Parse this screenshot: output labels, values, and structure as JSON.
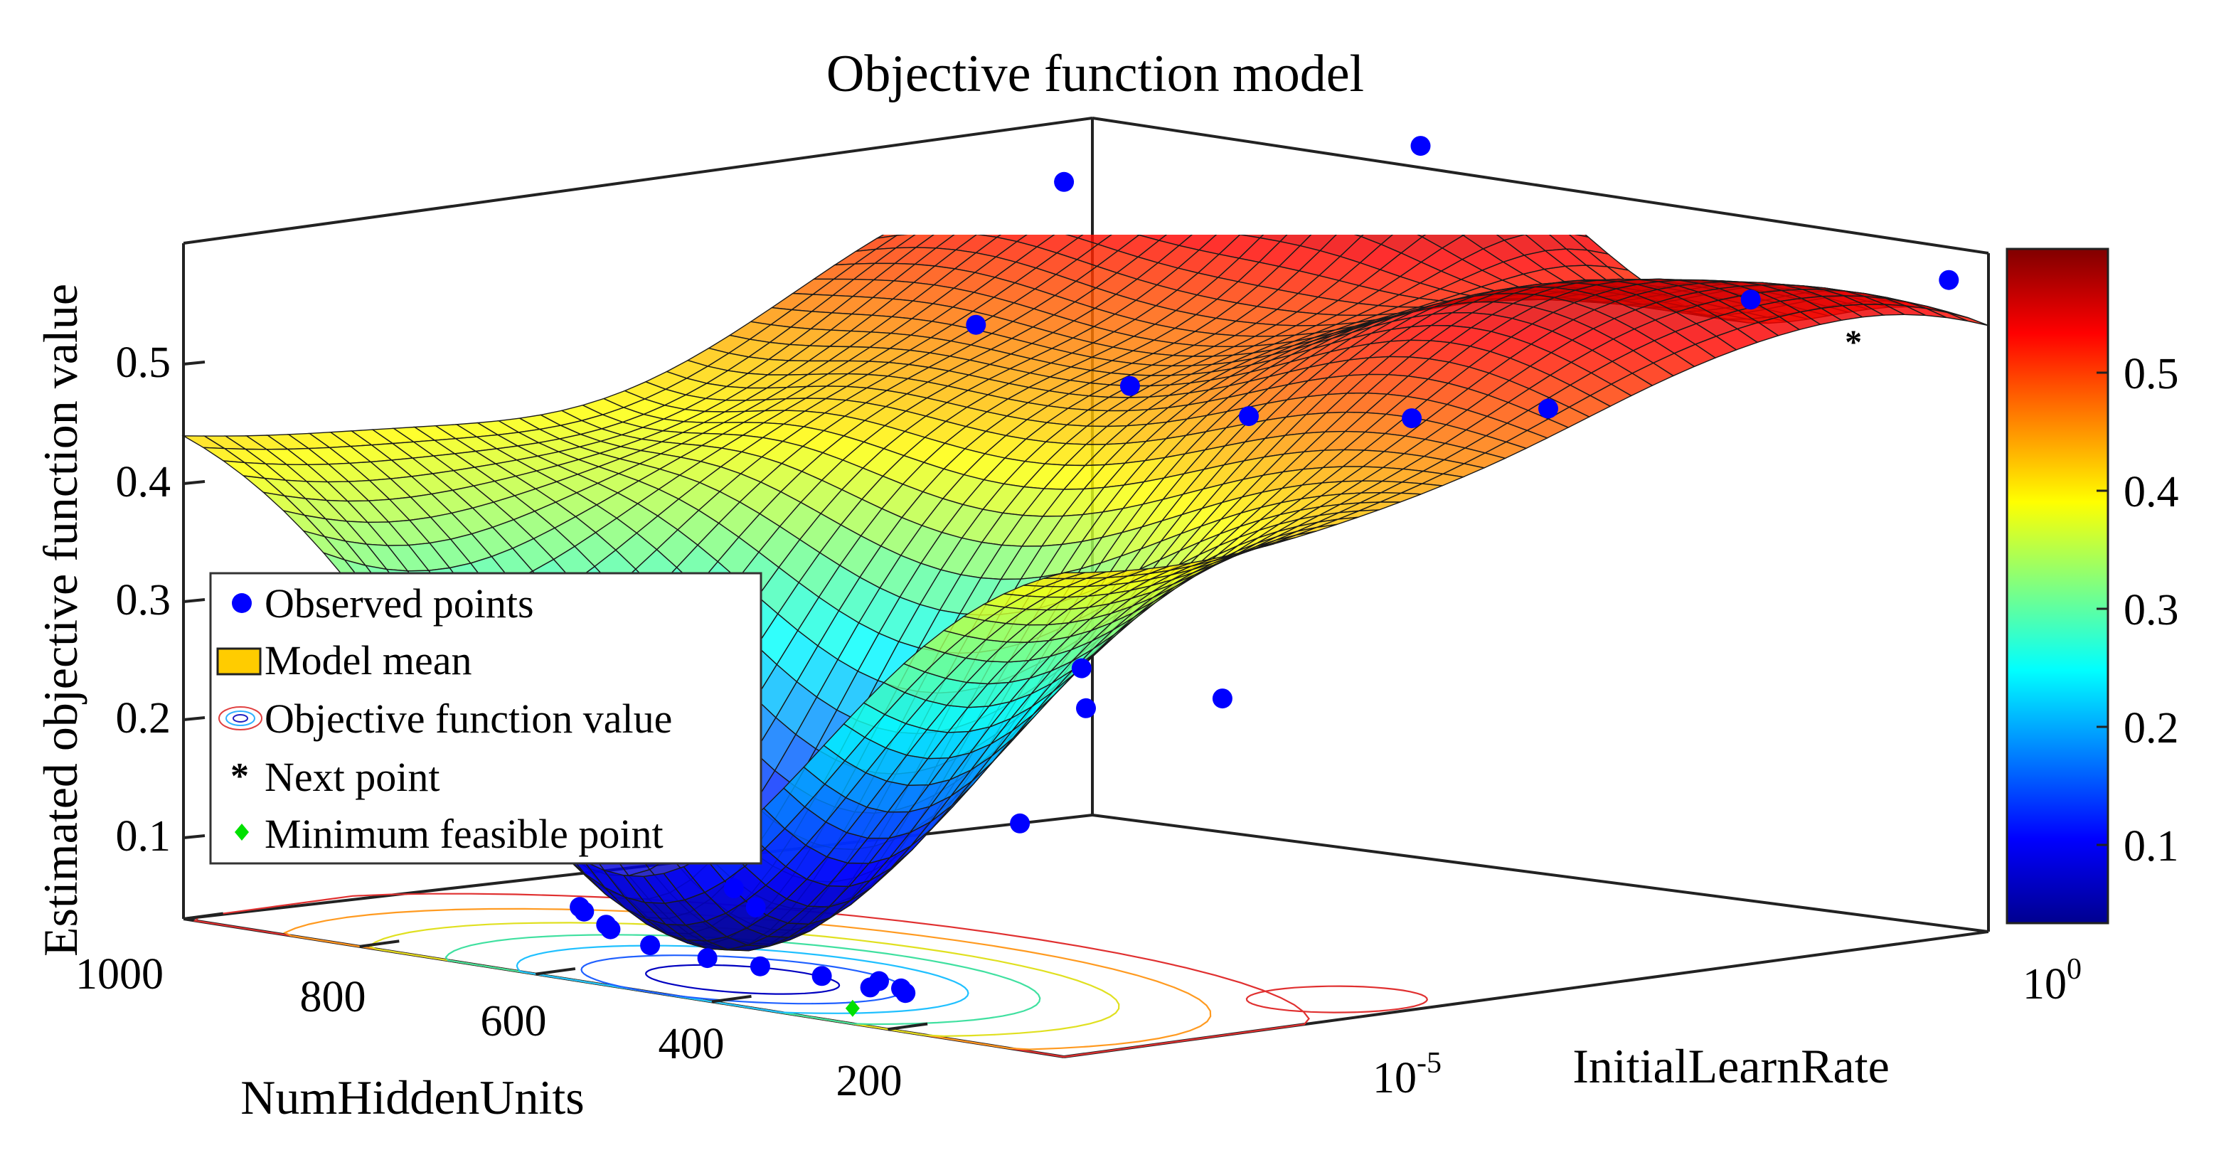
{
  "chart_data": {
    "type": "surface",
    "title": "Objective function model",
    "xlabel": "NumHiddenUnits",
    "ylabel": "InitialLearnRate",
    "zlabel": "Estimated objective function value",
    "x_ticks": [
      "1000",
      "800",
      "600",
      "400",
      "200"
    ],
    "y_ticks": [
      {
        "base": "10",
        "exp": "-5"
      },
      {
        "base": "10",
        "exp": "0"
      }
    ],
    "z_ticks": [
      "0.1",
      "0.2",
      "0.3",
      "0.4",
      "0.5"
    ],
    "colorbar_ticks": [
      "0.1",
      "0.2",
      "0.3",
      "0.4",
      "0.5"
    ],
    "zlim": [
      0,
      0.6
    ],
    "clim": [
      0.03,
      0.6
    ],
    "colormap": "jet",
    "legend": {
      "placement": "left",
      "entries": [
        {
          "key": "observed",
          "label": "Observed points",
          "color": "#0000ff"
        },
        {
          "key": "mean",
          "label": "Model mean",
          "color": "#ffcc00"
        },
        {
          "key": "contour",
          "label": "Objective function value",
          "color": "#4060ff"
        },
        {
          "key": "next",
          "label": "Next point",
          "color": "#000000"
        },
        {
          "key": "min",
          "label": "Minimum feasible point",
          "color": "#00e000"
        }
      ]
    },
    "series": [
      {
        "name": "Observed points",
        "points": [
          {
            "x": 900,
            "y": -1.0,
            "z": 0.545
          },
          {
            "x": 600,
            "y": -0.3,
            "z": 0.6
          },
          {
            "x": 850,
            "y": -2.0,
            "z": 0.445
          },
          {
            "x": 600,
            "y": -2.5,
            "z": 0.43
          },
          {
            "x": 420,
            "y": -2.8,
            "z": 0.43
          },
          {
            "x": 280,
            "y": -2.5,
            "z": 0.44
          },
          {
            "x": 200,
            "y": -2.0,
            "z": 0.45
          },
          {
            "x": 150,
            "y": -0.8,
            "z": 0.53
          },
          {
            "x": 30,
            "y": -0.1,
            "z": 0.55
          },
          {
            "x": 400,
            "y": -4.2,
            "z": 0.24
          },
          {
            "x": 380,
            "y": -4.3,
            "z": 0.21
          },
          {
            "x": 300,
            "y": -3.8,
            "z": 0.22
          },
          {
            "x": 380,
            "y": -4.8,
            "z": 0.12
          },
          {
            "x": 600,
            "y": -5.5,
            "z": 0.05
          },
          {
            "x": 560,
            "y": -5.6,
            "z": 0.04
          },
          {
            "x": 700,
            "y": -6.0,
            "z": 0.03
          },
          {
            "x": 680,
            "y": -6.1,
            "z": 0.03
          },
          {
            "x": 640,
            "y": -6.2,
            "z": 0.025
          },
          {
            "x": 620,
            "y": -6.3,
            "z": 0.025
          },
          {
            "x": 560,
            "y": -6.4,
            "z": 0.02
          },
          {
            "x": 480,
            "y": -6.5,
            "z": 0.02
          },
          {
            "x": 420,
            "y": -6.5,
            "z": 0.02
          },
          {
            "x": 350,
            "y": -6.5,
            "z": 0.02
          },
          {
            "x": 300,
            "y": -6.4,
            "z": 0.02
          },
          {
            "x": 280,
            "y": -6.6,
            "z": 0.02
          },
          {
            "x": 260,
            "y": -6.5,
            "z": 0.02
          },
          {
            "x": 240,
            "y": -6.6,
            "z": 0.02
          }
        ]
      },
      {
        "name": "Next point",
        "points": [
          {
            "x": 80,
            "y": -0.5,
            "z": 0.5
          }
        ]
      },
      {
        "name": "Minimum feasible point",
        "points": [
          {
            "x": 300,
            "y": -6.6,
            "z": 0.0
          }
        ]
      }
    ]
  }
}
